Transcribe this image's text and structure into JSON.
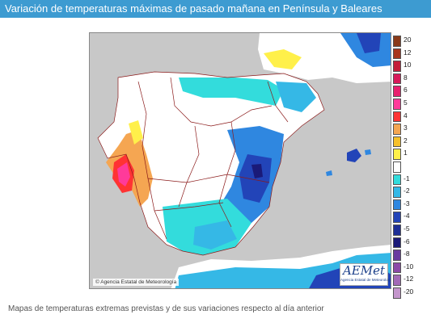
{
  "header": {
    "title": "Variación de temperaturas máximas de pasado mañana en Península y Baleares"
  },
  "map": {
    "credit": "© Agencia Estatal de Meteorología",
    "logo": {
      "name": "AEMet",
      "subtitle": "Agencia Estatal de Meteorología"
    },
    "land_color": "#ffffff",
    "sea_color": "#c8c8c8",
    "border_color": "#8b1a1a"
  },
  "legend": {
    "items": [
      {
        "label": "20",
        "color": "#8a3a1a"
      },
      {
        "label": "12",
        "color": "#a8341c"
      },
      {
        "label": "10",
        "color": "#c41e3a"
      },
      {
        "label": "8",
        "color": "#d81a5a"
      },
      {
        "label": "6",
        "color": "#e8206e"
      },
      {
        "label": "5",
        "color": "#ff3a9a"
      },
      {
        "label": "4",
        "color": "#ff3333"
      },
      {
        "label": "3",
        "color": "#f5a652"
      },
      {
        "label": "2",
        "color": "#f5c02a"
      },
      {
        "label": "1",
        "color": "#fff04a"
      },
      {
        "label": "",
        "color": "#ffffff"
      },
      {
        "label": "-1",
        "color": "#33dcdc"
      },
      {
        "label": "-2",
        "color": "#35b8e6"
      },
      {
        "label": "-3",
        "color": "#2f87e0"
      },
      {
        "label": "-4",
        "color": "#2244b8"
      },
      {
        "label": "-5",
        "color": "#1d2e96"
      },
      {
        "label": "-6",
        "color": "#1a1a78"
      },
      {
        "label": "-8",
        "color": "#6a3aa0"
      },
      {
        "label": "-10",
        "color": "#8c4aa8"
      },
      {
        "label": "-12",
        "color": "#a26ab6"
      },
      {
        "label": "-20",
        "color": "#c496cc"
      }
    ]
  },
  "caption": "Mapas de temperaturas extremas previstas y de sus variaciones respecto al día anterior"
}
